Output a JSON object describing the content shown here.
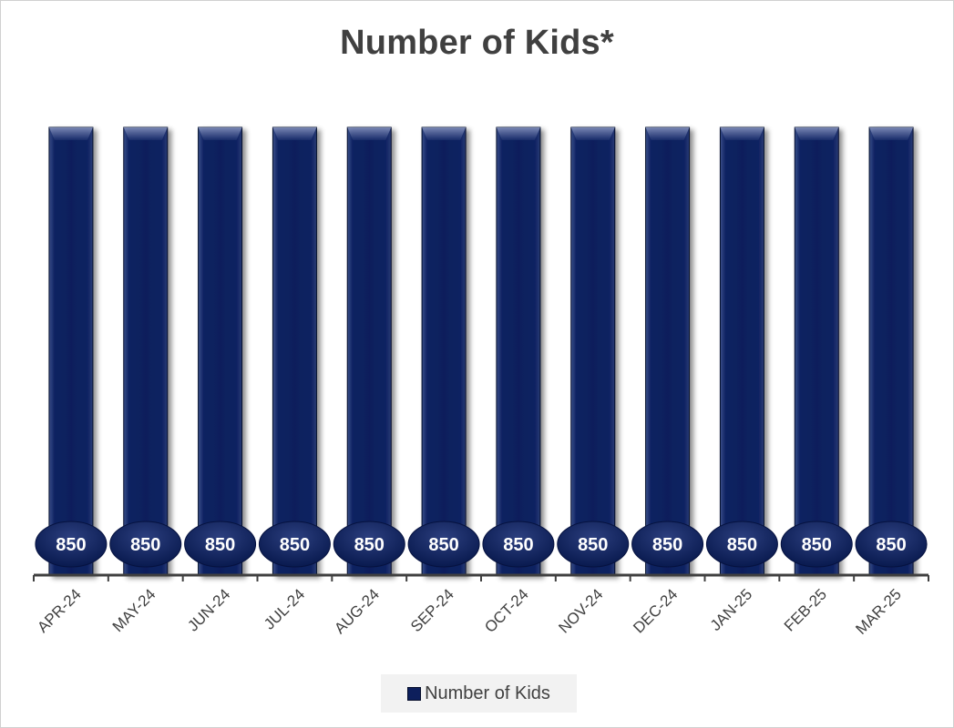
{
  "chart_data": {
    "type": "bar",
    "title": "Number of Kids*",
    "categories": [
      "APR-24",
      "MAY-24",
      "JUN-24",
      "JUL-24",
      "AUG-24",
      "SEP-24",
      "OCT-24",
      "NOV-24",
      "DEC-24",
      "JAN-25",
      "FEB-25",
      "MAR-25"
    ],
    "series": [
      {
        "name": "Number of Kids",
        "values": [
          850,
          850,
          850,
          850,
          850,
          850,
          850,
          850,
          850,
          850,
          850,
          850
        ]
      }
    ],
    "ylim": [
      0,
      850
    ],
    "grid": false,
    "legend_position": "bottom",
    "bar_color": "#0d1f5c"
  }
}
